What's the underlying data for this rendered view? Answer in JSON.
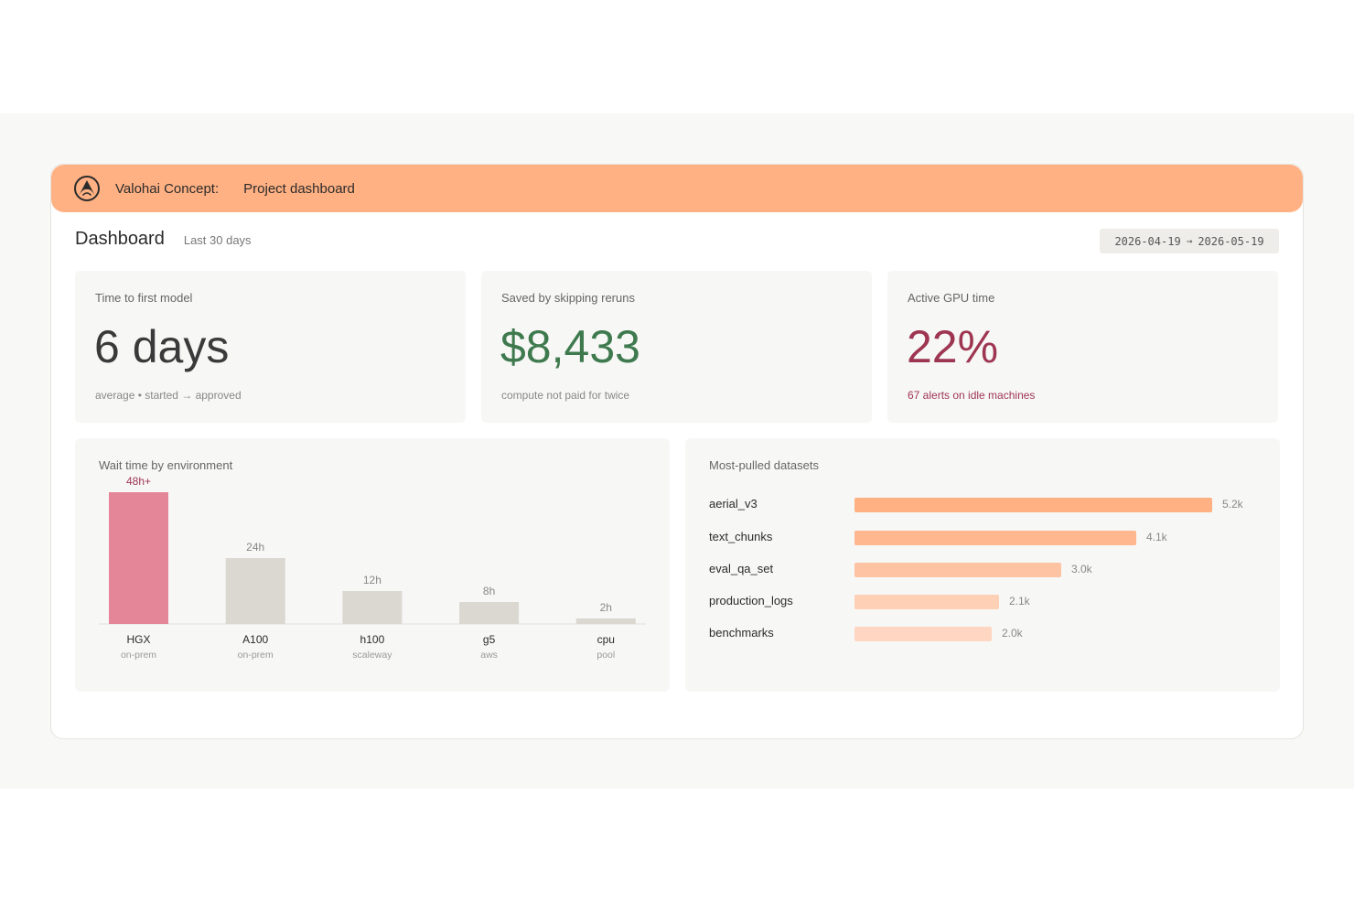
{
  "window": {
    "app_name": "Valohai Concept:",
    "page_name": "Project dashboard"
  },
  "header": {
    "title": "Dashboard",
    "subtitle": "Last 30 days",
    "date_from": "2026-04-19",
    "date_arrow": "→",
    "date_to": "2026-05-19"
  },
  "kpis": [
    {
      "label": "Time to first model",
      "value": "6 days",
      "note": "average • started → approved",
      "color": "#3a3a3a"
    },
    {
      "label": "Saved by skipping reruns",
      "value": "$8,433",
      "note": "compute not paid for twice",
      "color": "#3f7a4f"
    },
    {
      "label": "Active GPU time",
      "value": "22%",
      "note": "67 alerts on idle machines",
      "color": "#9e3551"
    }
  ],
  "wait_chart": {
    "title": "Wait time by environment",
    "chart_data": {
      "type": "bar",
      "categories": [
        "HGX",
        "A100",
        "h100",
        "g5",
        "cpu"
      ],
      "sublabels": [
        "on-prem",
        "on-prem",
        "scaleway",
        "aws",
        "pool"
      ],
      "values": [
        48,
        24,
        12,
        8,
        2
      ],
      "value_labels": [
        "48h+",
        "24h",
        "12h",
        "8h",
        "2h"
      ],
      "highlight_index": 0,
      "highlight_color": "#e48598",
      "bar_color": "#dbd8d1"
    }
  },
  "datasets": {
    "title": "Most-pulled datasets",
    "chart_data": {
      "type": "bar",
      "orientation": "horizontal",
      "categories": [
        "aerial_v3",
        "text_chunks",
        "eval_qa_set",
        "production_logs",
        "benchmarks"
      ],
      "values": [
        5.2,
        4.1,
        3.0,
        2.1,
        2.0
      ],
      "value_labels": [
        "5.2k",
        "4.1k",
        "3.0k",
        "2.1k",
        "2.0k"
      ],
      "colors": [
        "#ffb183",
        "#ffb790",
        "#fdc3a2",
        "#fed0b6",
        "#fed6c2"
      ]
    }
  },
  "colors": {
    "accent": "#ffb183"
  }
}
